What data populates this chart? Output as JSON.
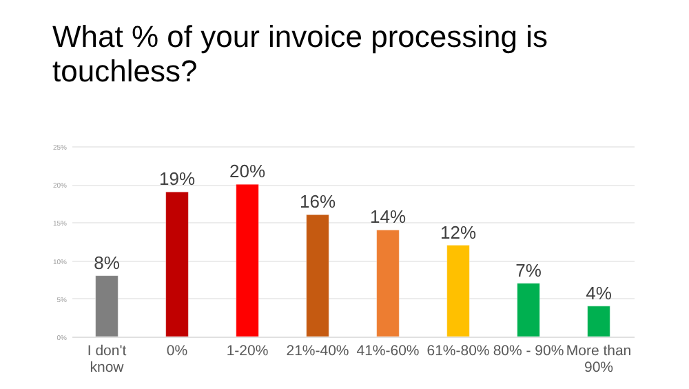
{
  "chart_data": {
    "type": "bar",
    "title": "What % of your invoice processing is touchless?",
    "categories": [
      "I don't know",
      "0%",
      "1-20%",
      "21%-40%",
      "41%-60%",
      "61%-80%",
      "80% - 90%",
      "More than 90%"
    ],
    "values": [
      8,
      19,
      20,
      16,
      14,
      12,
      7,
      4
    ],
    "colors": [
      "#7f7f7f",
      "#c00000",
      "#ff0000",
      "#c55a11",
      "#ed7d31",
      "#ffc000",
      "#00b050",
      "#00b050"
    ],
    "value_labels": [
      "8%",
      "19%",
      "20%",
      "16%",
      "14%",
      "12%",
      "7%",
      "4%"
    ],
    "ylim": [
      0,
      25
    ],
    "yticks": [
      {
        "value": 0,
        "label": "0%"
      },
      {
        "value": 5,
        "label": "5%"
      },
      {
        "value": 10,
        "label": "10%"
      },
      {
        "value": 15,
        "label": "15%"
      },
      {
        "value": 20,
        "label": "20%"
      },
      {
        "value": 25,
        "label": "25%"
      }
    ],
    "grid": "y"
  }
}
